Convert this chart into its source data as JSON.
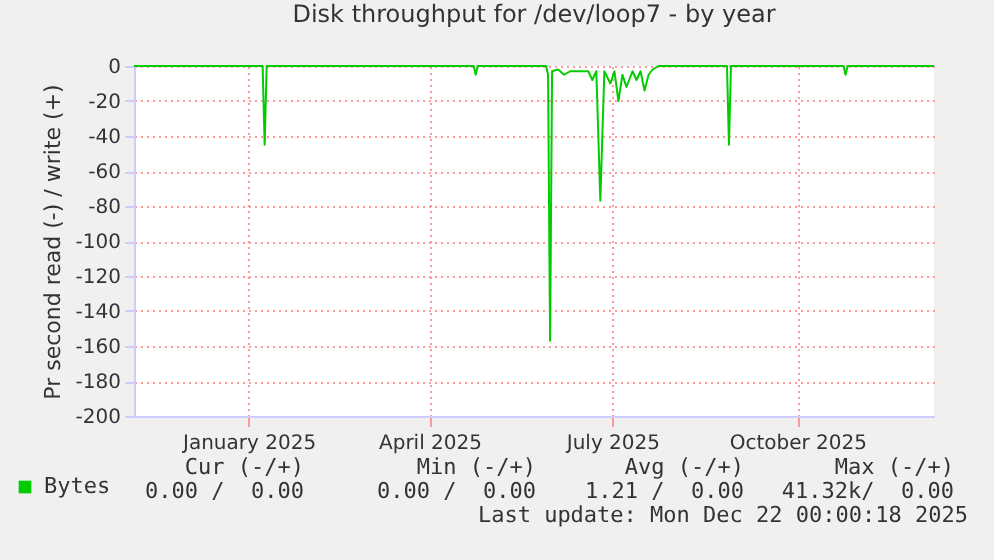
{
  "chart_data": {
    "type": "line",
    "title": "Disk throughput for /dev/loop7 - by year",
    "ylabel": "Pr second read (-) / write (+)",
    "xlim": [
      "2024-11-19",
      "2025-12-22"
    ],
    "xticks": [
      {
        "value": "2025-01-15",
        "label": "January 2025"
      },
      {
        "value": "2025-04-15",
        "label": "April 2025"
      },
      {
        "value": "2025-07-15",
        "label": "July 2025"
      },
      {
        "value": "2025-10-15",
        "label": "October 2025"
      }
    ],
    "ylim": [
      -200,
      0
    ],
    "yticks": [
      -200,
      -180,
      -160,
      -140,
      -120,
      -100,
      -80,
      -60,
      -40,
      -20,
      0
    ],
    "grid": true,
    "legend": "bottom left",
    "marker": "none",
    "line_style": "solid",
    "series": [
      {
        "name": "Bytes",
        "color": "#00cc00",
        "x": [
          "2024-11-19",
          "2025-01-22",
          "2025-01-23",
          "2025-01-24",
          "2025-05-07",
          "2025-05-08",
          "2025-05-09",
          "2025-06-12",
          "2025-06-13",
          "2025-06-14",
          "2025-06-15",
          "2025-06-18",
          "2025-06-21",
          "2025-06-24",
          "2025-06-27",
          "2025-07-03",
          "2025-07-05",
          "2025-07-07",
          "2025-07-09",
          "2025-07-11",
          "2025-07-14",
          "2025-07-16",
          "2025-07-18",
          "2025-07-20",
          "2025-07-22",
          "2025-07-25",
          "2025-07-27",
          "2025-07-29",
          "2025-07-31",
          "2025-08-02",
          "2025-08-04",
          "2025-08-07",
          "2025-09-10",
          "2025-09-11",
          "2025-09-12",
          "2025-11-07",
          "2025-11-08",
          "2025-11-09",
          "2025-12-22"
        ],
        "values": [
          0,
          0,
          -45,
          0,
          0,
          -5,
          0,
          0,
          -5,
          -157,
          -3,
          -2,
          -5,
          -3,
          -3,
          -3,
          -8,
          -3,
          -77,
          -3,
          -10,
          -3,
          -20,
          -5,
          -12,
          -3,
          -8,
          -3,
          -14,
          -5,
          -2,
          0,
          0,
          -45,
          0,
          0,
          -5,
          0,
          0
        ]
      }
    ],
    "annotations": [
      "Cur (-/+)",
      "Min (-/+)",
      "Avg (-/+)",
      "Max (-/+)",
      "0.00 /  0.00",
      "0.00 /  0.00",
      "1.21 /  0.00",
      "41.32k/  0.00",
      "Last update: Mon Dec 22 00:00:18 2025"
    ]
  }
}
